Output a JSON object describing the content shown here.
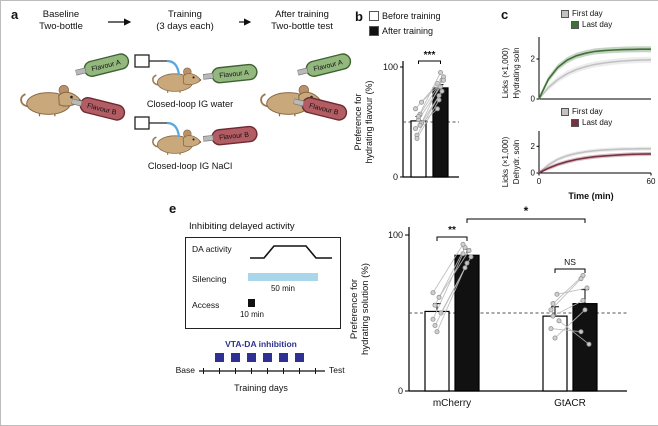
{
  "panels": {
    "a": {
      "label": "a",
      "stage1_line1": "Baseline",
      "stage1_line2": "Two-bottle",
      "stage2_line1": "Training",
      "stage2_line2": "(3 days each)",
      "stage3_line1": "After training",
      "stage3_line2": "Two-bottle test",
      "flavour_a": "Flavour A",
      "flavour_b": "Flavour B",
      "loop1_caption": "Closed-loop IG water",
      "loop2_caption": "Closed-loop IG NaCl",
      "colors": {
        "flavour_a_fill": "#93b87e",
        "flavour_a_stroke": "#3f6134",
        "flavour_b_fill": "#b25c63",
        "flavour_b_stroke": "#6e2a32",
        "mouse_fill": "#c9a87c",
        "tube": "#5aa7d9"
      }
    },
    "b": {
      "label": "b",
      "legend": [
        {
          "label": "Before training",
          "color": "#ffffff"
        },
        {
          "label": "After training",
          "color": "#111111"
        }
      ],
      "ylabel_line1": "Preference for",
      "ylabel_line2": "hydrating flavour (%)"
    },
    "c": {
      "label": "c",
      "top": {
        "legend": [
          {
            "label": "First day",
            "color": "#c2c2c2"
          },
          {
            "label": "Last day",
            "color": "#3f7036"
          }
        ],
        "ylabel_line1": "Licks (×1,000)",
        "ylabel_line2": "Hydrating soln"
      },
      "bottom": {
        "legend": [
          {
            "label": "First day",
            "color": "#c2c2c2"
          },
          {
            "label": "Last day",
            "color": "#7b3040"
          }
        ],
        "ylabel_line1": "Licks (×1,000)",
        "ylabel_line2": "Dehydr. soln",
        "xlabel": "Time (min)"
      }
    },
    "e": {
      "label": "e",
      "schematic": {
        "title": "Inhibiting delayed activity",
        "row1": "DA activity",
        "row2": "Silencing",
        "row3": "Access",
        "silencing_duration": "50 min",
        "access_duration": "10 min",
        "inhibition_label": "VTA-DA inhibition",
        "timeline_start": "Base",
        "timeline_end": "Test",
        "timeline_label": "Training days",
        "colors": {
          "silencing_bar": "#a9d6e8",
          "inhibition_square": "#2e3192"
        }
      },
      "ylabel_line1": "Preference for",
      "ylabel_line2": "hydrating solution (%)"
    }
  },
  "chart_data": [
    {
      "id": "b",
      "type": "bar",
      "ylabel": "Preference for hydrating flavour (%)",
      "ylim": [
        0,
        100
      ],
      "yticks": [
        0,
        100
      ],
      "categories": [
        "Before training",
        "After training"
      ],
      "values": [
        51,
        81
      ],
      "errors": [
        4,
        3
      ],
      "bar_colors": [
        "#ffffff",
        "#111111"
      ],
      "dashed_line": 50,
      "significance": "***",
      "paired_points": [
        [
          44,
          62
        ],
        [
          38,
          74
        ],
        [
          52,
          82
        ],
        [
          57,
          88
        ],
        [
          49,
          91
        ],
        [
          62,
          85
        ],
        [
          35,
          70
        ],
        [
          55,
          95
        ],
        [
          47,
          78
        ],
        [
          68,
          88
        ]
      ]
    },
    {
      "id": "c_top",
      "type": "line",
      "ylabel": "Licks (×1,000) Hydrating soln",
      "xlim": [
        0,
        60
      ],
      "ylim": [
        0,
        3
      ],
      "yticks": [
        0,
        2
      ],
      "band": 0.15,
      "x": [
        0,
        5,
        10,
        15,
        20,
        25,
        30,
        35,
        40,
        45,
        50,
        55,
        60
      ],
      "series": [
        {
          "name": "First day",
          "color": "#c2c2c2",
          "y": [
            0,
            0.57,
            0.97,
            1.26,
            1.47,
            1.62,
            1.73,
            1.8,
            1.86,
            1.9,
            1.93,
            1.95,
            1.96
          ]
        },
        {
          "name": "Last day",
          "color": "#3f7036",
          "y": [
            0,
            0.98,
            1.58,
            1.94,
            2.16,
            2.29,
            2.38,
            2.42,
            2.45,
            2.47,
            2.48,
            2.49,
            2.49
          ]
        }
      ]
    },
    {
      "id": "c_bottom",
      "type": "line",
      "ylabel": "Licks (×1,000) Dehydr. soln",
      "xlabel": "Time (min)",
      "xlim": [
        0,
        60
      ],
      "ylim": [
        0,
        3
      ],
      "yticks": [
        0,
        2
      ],
      "xticks": [
        0,
        60
      ],
      "band": 0.15,
      "x": [
        0,
        5,
        10,
        15,
        20,
        25,
        30,
        35,
        40,
        45,
        50,
        55,
        60
      ],
      "series": [
        {
          "name": "First day",
          "color": "#c2c2c2",
          "y": [
            0,
            0.61,
            1.02,
            1.29,
            1.47,
            1.59,
            1.67,
            1.73,
            1.76,
            1.79,
            1.8,
            1.82,
            1.82
          ]
        },
        {
          "name": "Last day",
          "color": "#7b3040",
          "y": [
            0,
            0.36,
            0.64,
            0.85,
            1.01,
            1.13,
            1.22,
            1.28,
            1.33,
            1.37,
            1.4,
            1.42,
            1.43
          ]
        }
      ]
    },
    {
      "id": "e",
      "type": "grouped-bar",
      "ylabel": "Preference for hydrating solution (%)",
      "ylim": [
        0,
        100
      ],
      "yticks": [
        0,
        100
      ],
      "groups": [
        "mCherry",
        "GtACR"
      ],
      "series": [
        {
          "name": "Before training",
          "color": "#ffffff",
          "values": [
            51,
            48
          ],
          "errors": [
            5,
            6
          ]
        },
        {
          "name": "After training",
          "color": "#111111",
          "values": [
            87,
            56
          ],
          "errors": [
            4,
            9
          ]
        }
      ],
      "dashed_line": 50,
      "group_significance": [
        "**",
        "NS"
      ],
      "between_significance": "*",
      "paired_points": {
        "mCherry": [
          [
            46,
            88
          ],
          [
            55,
            92
          ],
          [
            38,
            82
          ],
          [
            60,
            90
          ],
          [
            50,
            86
          ],
          [
            63,
            94
          ],
          [
            42,
            79
          ]
        ],
        "GtACR": [
          [
            40,
            38
          ],
          [
            56,
            74
          ],
          [
            34,
            52
          ],
          [
            62,
            66
          ],
          [
            45,
            30
          ],
          [
            52,
            72
          ],
          [
            48,
            58
          ]
        ]
      }
    }
  ]
}
